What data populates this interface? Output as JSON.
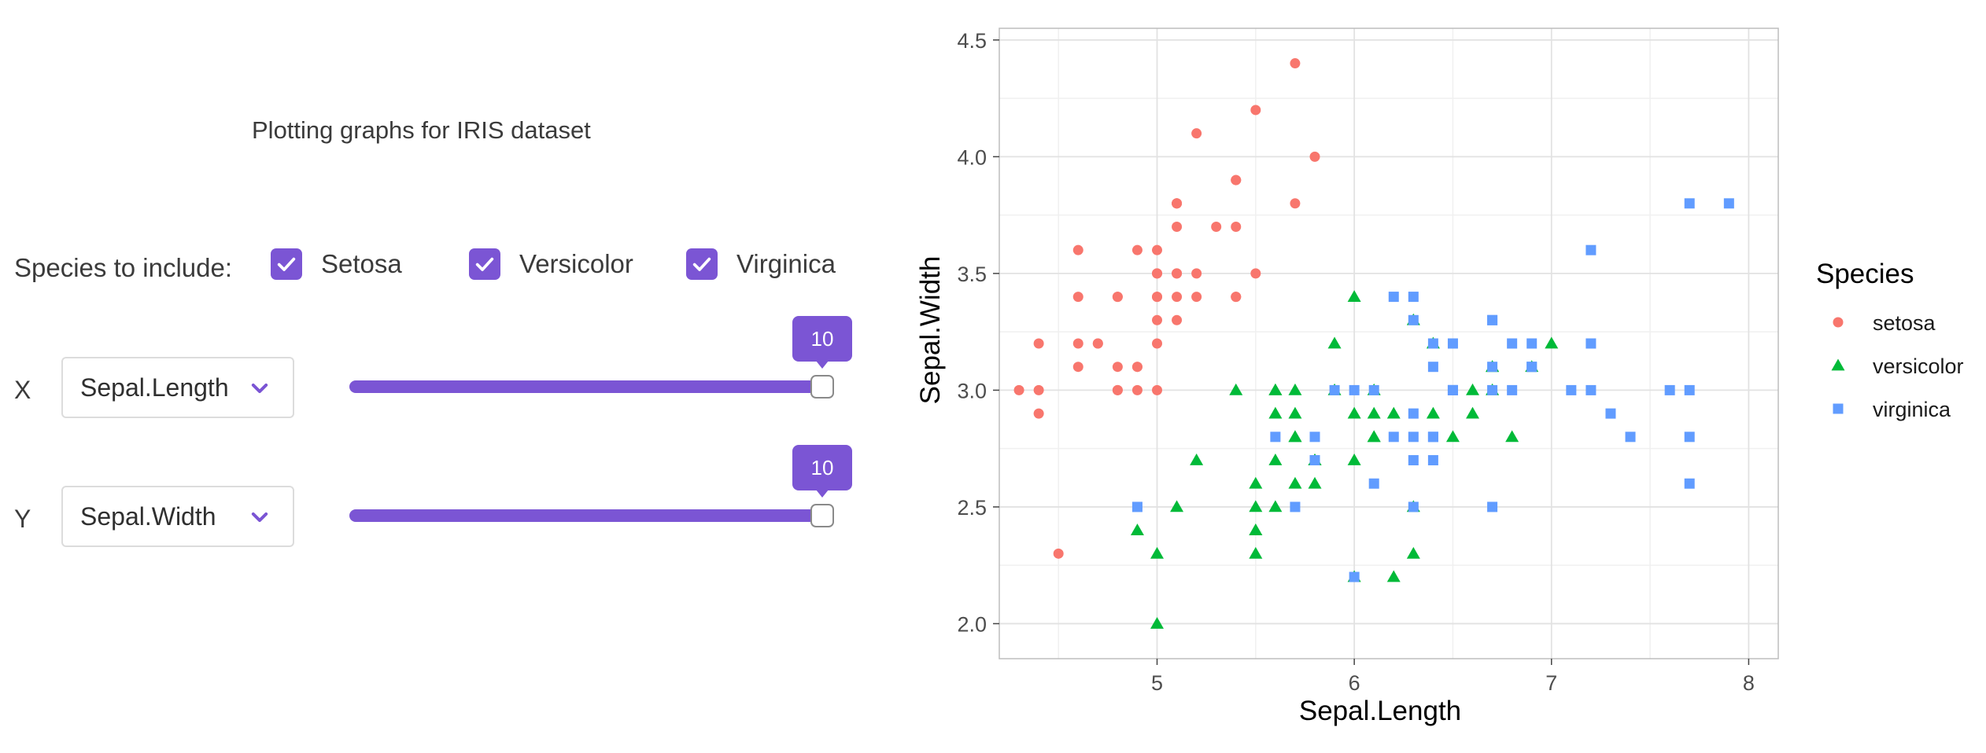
{
  "app": {
    "title": "Plotting graphs for IRIS dataset",
    "accent": "#7b55d4"
  },
  "species_filter": {
    "label": "Species to include:",
    "options": [
      {
        "label": "Setosa",
        "checked": true
      },
      {
        "label": "Versicolor",
        "checked": true
      },
      {
        "label": "Virginica",
        "checked": true
      }
    ]
  },
  "x_control": {
    "letter": "X",
    "selected": "Sepal.Length",
    "slider_value": "10",
    "slider_fraction": 1.0,
    "icon": "chevron-down-icon"
  },
  "y_control": {
    "letter": "Y",
    "selected": "Sepal.Width",
    "slider_value": "10",
    "slider_fraction": 1.0,
    "icon": "chevron-down-icon"
  },
  "chart_data": {
    "type": "scatter",
    "title": "",
    "xlabel": "Sepal.Length",
    "ylabel": "Sepal.Width",
    "xlim": [
      4.2,
      8.15
    ],
    "ylim": [
      1.85,
      4.55
    ],
    "xticks": [
      "5",
      "6",
      "7",
      "8"
    ],
    "xtick_values": [
      5,
      6,
      7,
      8
    ],
    "yticks": [
      "2.0",
      "2.5",
      "3.0",
      "3.5",
      "4.0",
      "4.5"
    ],
    "ytick_values": [
      2.0,
      2.5,
      3.0,
      3.5,
      4.0,
      4.5
    ],
    "grid": true,
    "legend": {
      "title": "Species",
      "position": "right"
    },
    "series": [
      {
        "name": "setosa",
        "marker": "circle",
        "color": "#f8766d",
        "points": [
          [
            5.1,
            3.5
          ],
          [
            4.9,
            3.0
          ],
          [
            4.7,
            3.2
          ],
          [
            4.6,
            3.1
          ],
          [
            5.0,
            3.6
          ],
          [
            5.4,
            3.9
          ],
          [
            4.6,
            3.4
          ],
          [
            5.0,
            3.4
          ],
          [
            4.4,
            2.9
          ],
          [
            4.9,
            3.1
          ],
          [
            5.4,
            3.7
          ],
          [
            4.8,
            3.4
          ],
          [
            4.8,
            3.0
          ],
          [
            4.3,
            3.0
          ],
          [
            5.8,
            4.0
          ],
          [
            5.7,
            4.4
          ],
          [
            5.4,
            3.9
          ],
          [
            5.1,
            3.5
          ],
          [
            5.7,
            3.8
          ],
          [
            5.1,
            3.8
          ],
          [
            5.4,
            3.4
          ],
          [
            5.1,
            3.7
          ],
          [
            4.6,
            3.6
          ],
          [
            5.1,
            3.3
          ],
          [
            4.8,
            3.4
          ],
          [
            5.0,
            3.0
          ],
          [
            5.0,
            3.4
          ],
          [
            5.2,
            3.5
          ],
          [
            5.2,
            3.4
          ],
          [
            4.7,
            3.2
          ],
          [
            4.8,
            3.1
          ],
          [
            5.4,
            3.4
          ],
          [
            5.2,
            4.1
          ],
          [
            5.5,
            4.2
          ],
          [
            4.9,
            3.1
          ],
          [
            5.0,
            3.2
          ],
          [
            5.5,
            3.5
          ],
          [
            4.9,
            3.6
          ],
          [
            4.4,
            3.0
          ],
          [
            5.1,
            3.4
          ],
          [
            5.0,
            3.5
          ],
          [
            4.5,
            2.3
          ],
          [
            4.4,
            3.2
          ],
          [
            5.0,
            3.5
          ],
          [
            5.1,
            3.8
          ],
          [
            4.8,
            3.0
          ],
          [
            5.1,
            3.8
          ],
          [
            4.6,
            3.2
          ],
          [
            5.3,
            3.7
          ],
          [
            5.0,
            3.3
          ]
        ]
      },
      {
        "name": "versicolor",
        "marker": "triangle",
        "color": "#00ba38",
        "points": [
          [
            7.0,
            3.2
          ],
          [
            6.4,
            3.2
          ],
          [
            6.9,
            3.1
          ],
          [
            5.5,
            2.3
          ],
          [
            6.5,
            2.8
          ],
          [
            5.7,
            2.8
          ],
          [
            6.3,
            3.3
          ],
          [
            4.9,
            2.4
          ],
          [
            6.6,
            2.9
          ],
          [
            5.2,
            2.7
          ],
          [
            5.0,
            2.0
          ],
          [
            5.9,
            3.0
          ],
          [
            6.0,
            2.2
          ],
          [
            6.1,
            2.9
          ],
          [
            5.6,
            2.9
          ],
          [
            6.7,
            3.1
          ],
          [
            5.6,
            3.0
          ],
          [
            5.8,
            2.7
          ],
          [
            6.2,
            2.2
          ],
          [
            5.6,
            2.5
          ],
          [
            5.9,
            3.2
          ],
          [
            6.1,
            2.8
          ],
          [
            6.3,
            2.5
          ],
          [
            6.1,
            2.8
          ],
          [
            6.4,
            2.9
          ],
          [
            6.6,
            3.0
          ],
          [
            6.8,
            2.8
          ],
          [
            6.7,
            3.0
          ],
          [
            6.0,
            2.9
          ],
          [
            5.7,
            2.6
          ],
          [
            5.5,
            2.4
          ],
          [
            5.5,
            2.4
          ],
          [
            5.8,
            2.7
          ],
          [
            6.0,
            2.7
          ],
          [
            5.4,
            3.0
          ],
          [
            6.0,
            3.4
          ],
          [
            6.7,
            3.1
          ],
          [
            6.3,
            2.3
          ],
          [
            5.6,
            3.0
          ],
          [
            5.5,
            2.5
          ],
          [
            5.5,
            2.6
          ],
          [
            6.1,
            3.0
          ],
          [
            5.8,
            2.6
          ],
          [
            5.0,
            2.3
          ],
          [
            5.6,
            2.7
          ],
          [
            5.7,
            3.0
          ],
          [
            5.7,
            2.9
          ],
          [
            6.2,
            2.9
          ],
          [
            5.1,
            2.5
          ],
          [
            5.7,
            2.8
          ]
        ]
      },
      {
        "name": "virginica",
        "marker": "square",
        "color": "#619cff",
        "points": [
          [
            6.3,
            3.3
          ],
          [
            5.8,
            2.7
          ],
          [
            7.1,
            3.0
          ],
          [
            6.3,
            2.9
          ],
          [
            6.5,
            3.0
          ],
          [
            7.6,
            3.0
          ],
          [
            4.9,
            2.5
          ],
          [
            7.3,
            2.9
          ],
          [
            6.7,
            2.5
          ],
          [
            7.2,
            3.6
          ],
          [
            6.5,
            3.2
          ],
          [
            6.4,
            2.7
          ],
          [
            6.8,
            3.0
          ],
          [
            5.7,
            2.5
          ],
          [
            5.8,
            2.8
          ],
          [
            6.4,
            3.2
          ],
          [
            6.5,
            3.0
          ],
          [
            7.7,
            3.8
          ],
          [
            7.7,
            2.6
          ],
          [
            6.0,
            2.2
          ],
          [
            6.9,
            3.2
          ],
          [
            5.6,
            2.8
          ],
          [
            7.7,
            2.8
          ],
          [
            6.3,
            2.7
          ],
          [
            6.7,
            3.3
          ],
          [
            7.2,
            3.2
          ],
          [
            6.2,
            2.8
          ],
          [
            6.1,
            3.0
          ],
          [
            6.4,
            2.8
          ],
          [
            7.2,
            3.0
          ],
          [
            7.4,
            2.8
          ],
          [
            7.9,
            3.8
          ],
          [
            6.4,
            2.8
          ],
          [
            6.3,
            2.8
          ],
          [
            6.1,
            2.6
          ],
          [
            7.7,
            3.0
          ],
          [
            6.3,
            3.4
          ],
          [
            6.4,
            3.1
          ],
          [
            6.0,
            3.0
          ],
          [
            6.9,
            3.1
          ],
          [
            6.7,
            3.1
          ],
          [
            6.9,
            3.1
          ],
          [
            5.8,
            2.7
          ],
          [
            6.8,
            3.2
          ],
          [
            6.7,
            3.3
          ],
          [
            6.7,
            3.0
          ],
          [
            6.3,
            2.5
          ],
          [
            6.5,
            3.0
          ],
          [
            6.2,
            3.4
          ],
          [
            5.9,
            3.0
          ]
        ]
      }
    ]
  }
}
